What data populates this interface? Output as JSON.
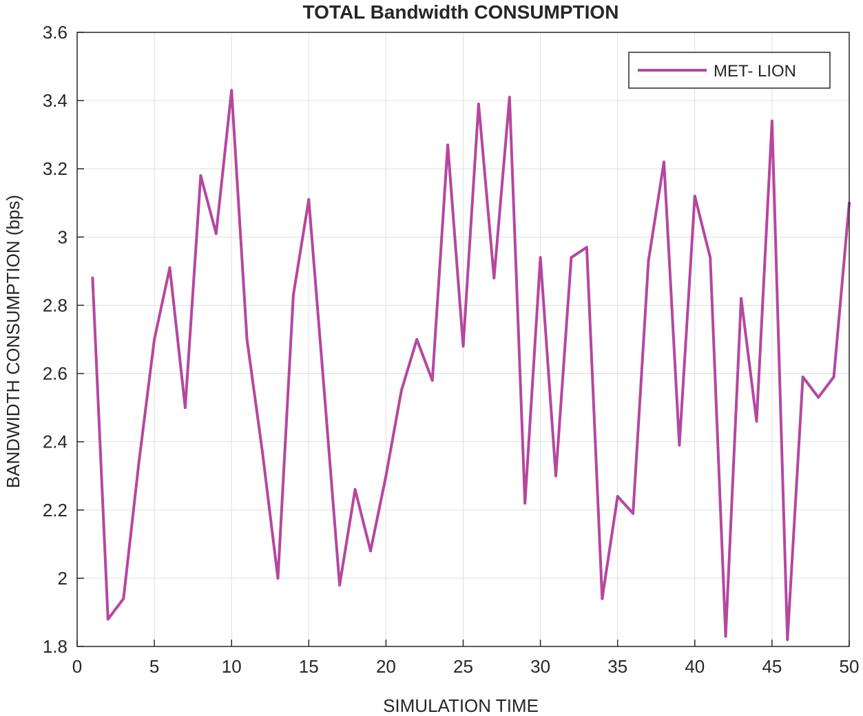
{
  "chart_data": {
    "type": "line",
    "title": "TOTAL Bandwidth CONSUMPTION",
    "xlabel": "SIMULATION TIME",
    "ylabel": "BANDWIDTH CONSUMPTION (bps)",
    "xlim": [
      0,
      50
    ],
    "ylim": [
      1.8,
      3.6
    ],
    "xticks": [
      0,
      5,
      10,
      15,
      20,
      25,
      30,
      35,
      40,
      45,
      50
    ],
    "xtick_labels": [
      "0",
      "5",
      "10",
      "15",
      "20",
      "25",
      "30",
      "35",
      "40",
      "45",
      "50"
    ],
    "yticks": [
      1.8,
      2,
      2.2,
      2.4,
      2.6,
      2.8,
      3,
      3.2,
      3.4,
      3.6
    ],
    "ytick_labels": [
      "1.8",
      "2",
      "2.2",
      "2.4",
      "2.6",
      "2.8",
      "3",
      "3.2",
      "3.4",
      "3.6"
    ],
    "grid": true,
    "legend_position": "top-right",
    "series": [
      {
        "name": "MET- LION",
        "color": "#b5479f",
        "x": [
          1,
          2,
          3,
          4,
          5,
          6,
          7,
          8,
          9,
          10,
          11,
          12,
          13,
          14,
          15,
          16,
          17,
          18,
          19,
          20,
          21,
          22,
          23,
          24,
          25,
          26,
          27,
          28,
          29,
          30,
          31,
          32,
          33,
          34,
          35,
          36,
          37,
          38,
          39,
          40,
          41,
          42,
          43,
          44,
          45,
          46,
          47,
          48,
          49,
          50
        ],
        "values": [
          2.88,
          1.88,
          1.94,
          2.34,
          2.7,
          2.91,
          2.5,
          3.18,
          3.01,
          3.43,
          2.7,
          2.37,
          2.0,
          2.83,
          3.11,
          2.55,
          1.98,
          2.26,
          2.08,
          2.3,
          2.55,
          2.7,
          2.58,
          3.27,
          2.68,
          3.39,
          2.88,
          3.41,
          2.22,
          2.94,
          2.3,
          2.94,
          2.97,
          1.94,
          2.24,
          2.19,
          2.93,
          3.22,
          2.39,
          3.12,
          2.94,
          1.83,
          2.82,
          2.46,
          3.34,
          1.82,
          2.59,
          2.53,
          2.59,
          3.1
        ]
      }
    ]
  }
}
